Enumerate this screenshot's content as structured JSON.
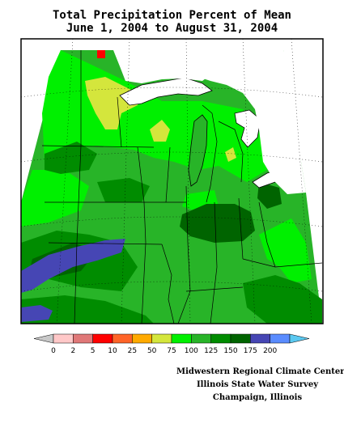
{
  "title": {
    "line1": "Total Precipitation Percent of Mean",
    "line2": "June 1, 2004 to August 31, 2004"
  },
  "legend": {
    "stops": [
      {
        "color": "#c8c8c8"
      },
      {
        "label": "0",
        "color": "#ffc8c8"
      },
      {
        "label": "2",
        "color": "#e07878"
      },
      {
        "label": "5",
        "color": "#ff0000"
      },
      {
        "label": "10",
        "color": "#ff6428"
      },
      {
        "label": "25",
        "color": "#ffaa00"
      },
      {
        "label": "50",
        "color": "#d4e63c"
      },
      {
        "label": "75",
        "color": "#00f000"
      },
      {
        "label": "100",
        "color": "#28b428"
      },
      {
        "label": "125",
        "color": "#008c00"
      },
      {
        "label": "150",
        "color": "#006400"
      },
      {
        "label": "175",
        "color": "#4646b4"
      },
      {
        "label": "200",
        "color": "#5a8cff"
      },
      {
        "color": "#5ac8f0"
      }
    ]
  },
  "colors": {
    "c75": "#00f000",
    "c100": "#28b428",
    "c125": "#008c00",
    "c150": "#006400",
    "c175": "#4646b4",
    "c50": "#d4e63c",
    "water": "#ffffff",
    "outline": "#000000"
  },
  "credits": {
    "line1": "Midwestern Regional Climate Center",
    "line2": "Illinois State Water Survey",
    "line3": "Champaign, Illinois"
  }
}
